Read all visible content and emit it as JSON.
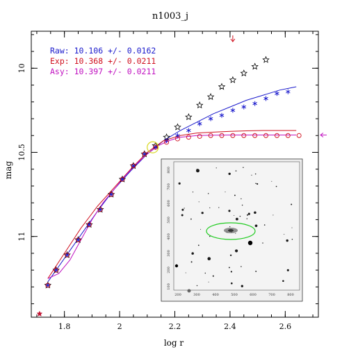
{
  "chart_data": {
    "type": "scatter",
    "title": "n1003_j",
    "xlabel": "log r",
    "ylabel": "mag",
    "xlim": [
      1.68,
      2.72
    ],
    "ylim": [
      11.48,
      9.78
    ],
    "xticks": [
      1.8,
      2,
      2.2,
      2.4,
      2.6
    ],
    "xtick_labels": [
      "1.8",
      "2",
      "2.2",
      "2.4",
      "2.6"
    ],
    "yticks": [
      10,
      10.5,
      11
    ],
    "ytick_labels": [
      "10",
      "10.5",
      "11"
    ],
    "legend": [
      {
        "text": "Raw:  10.106 +/- 0.0162",
        "color": "#1a1acc"
      },
      {
        "text": "Exp:  10.368 +/- 0.0211",
        "color": "#d0101e"
      },
      {
        "text": "Asy:  10.397 +/- 0.0211",
        "color": "#c010c0"
      }
    ],
    "series": [
      {
        "marker": "star-outline",
        "color": "#000000",
        "x": [
          1.74,
          1.77,
          1.81,
          1.85,
          1.89,
          1.93,
          1.97,
          2.01,
          2.05,
          2.09,
          2.13,
          2.17,
          2.21,
          2.25,
          2.29,
          2.33,
          2.37,
          2.41,
          2.45,
          2.49,
          2.53
        ],
        "y": [
          11.29,
          11.2,
          11.11,
          11.02,
          10.93,
          10.84,
          10.75,
          10.66,
          10.58,
          10.51,
          10.46,
          10.41,
          10.35,
          10.29,
          10.22,
          10.17,
          10.11,
          10.07,
          10.03,
          9.99,
          9.95
        ]
      },
      {
        "marker": "asterisk",
        "color": "#1a1acc",
        "x": [
          1.74,
          1.77,
          1.81,
          1.85,
          1.89,
          1.93,
          1.97,
          2.01,
          2.05,
          2.09,
          2.13,
          2.17,
          2.21,
          2.25,
          2.29,
          2.33,
          2.37,
          2.41,
          2.45,
          2.49,
          2.53,
          2.57,
          2.61
        ],
        "y": [
          11.29,
          11.2,
          11.11,
          11.02,
          10.93,
          10.84,
          10.75,
          10.66,
          10.58,
          10.51,
          10.47,
          10.43,
          10.4,
          10.37,
          10.33,
          10.3,
          10.28,
          10.25,
          10.23,
          10.21,
          10.18,
          10.15,
          10.14
        ]
      },
      {
        "marker": "circle",
        "color": "#d0101e",
        "x": [
          1.74,
          1.77,
          1.81,
          1.85,
          1.89,
          1.93,
          1.97,
          2.01,
          2.05,
          2.09,
          2.13,
          2.17,
          2.21,
          2.25,
          2.29,
          2.33,
          2.37,
          2.41,
          2.45,
          2.49,
          2.53,
          2.57,
          2.61,
          2.65
        ],
        "y": [
          11.29,
          11.2,
          11.11,
          11.02,
          10.93,
          10.84,
          10.75,
          10.66,
          10.58,
          10.51,
          10.47,
          10.44,
          10.42,
          10.41,
          10.405,
          10.4,
          10.4,
          10.4,
          10.4,
          10.4,
          10.4,
          10.4,
          10.4,
          10.4
        ]
      }
    ],
    "curves": [
      {
        "color": "#1a1acc",
        "x": [
          1.74,
          1.8,
          1.86,
          1.92,
          1.98,
          2.04,
          2.1,
          2.16,
          2.22,
          2.28,
          2.34,
          2.4,
          2.46,
          2.52,
          2.58,
          2.64
        ],
        "y": [
          11.27,
          11.13,
          10.99,
          10.85,
          10.72,
          10.61,
          10.51,
          10.43,
          10.37,
          10.32,
          10.27,
          10.23,
          10.19,
          10.16,
          10.13,
          10.11
        ]
      },
      {
        "color": "#d0101e",
        "x": [
          1.74,
          1.8,
          1.86,
          1.92,
          1.98,
          2.04,
          2.1,
          2.16,
          2.22,
          2.28,
          2.34,
          2.4,
          2.46,
          2.52,
          2.58,
          2.64
        ],
        "y": [
          11.25,
          11.1,
          10.95,
          10.82,
          10.71,
          10.6,
          10.5,
          10.43,
          10.4,
          10.385,
          10.38,
          10.375,
          10.372,
          10.37,
          10.37,
          10.37
        ]
      },
      {
        "color": "#c010c0",
        "x": [
          1.74,
          1.78,
          1.82,
          1.86,
          1.9,
          1.94,
          1.98,
          2.02,
          2.06,
          2.1,
          2.14,
          2.18,
          2.22,
          2.28,
          2.34,
          2.4,
          2.46,
          2.52,
          2.58,
          2.64
        ],
        "y": [
          11.25,
          11.22,
          11.14,
          11.02,
          10.9,
          10.8,
          10.72,
          10.64,
          10.57,
          10.51,
          10.46,
          10.43,
          10.41,
          10.4,
          10.398,
          10.397,
          10.397,
          10.397,
          10.397,
          10.397
        ]
      }
    ],
    "annotations": [
      {
        "kind": "down-arrow",
        "color": "#d0101e",
        "x": 2.41
      },
      {
        "kind": "left-arrow",
        "color": "#c010c0",
        "y": 10.397
      },
      {
        "kind": "star-filled",
        "color": "#c01030",
        "x": 1.71,
        "y": 11.46
      },
      {
        "kind": "highlight-circle",
        "color": "#d8d820",
        "x": 2.12,
        "y": 10.47
      }
    ],
    "inset": {
      "description_hidden": true,
      "ellipse_color": "#22cc22",
      "xtick_labels": [
        "200",
        "300",
        "400",
        "500",
        "600",
        "700",
        "800"
      ],
      "ytick_labels": [
        "800",
        "700",
        "600",
        "500",
        "400",
        "300",
        "200",
        "100"
      ]
    }
  }
}
